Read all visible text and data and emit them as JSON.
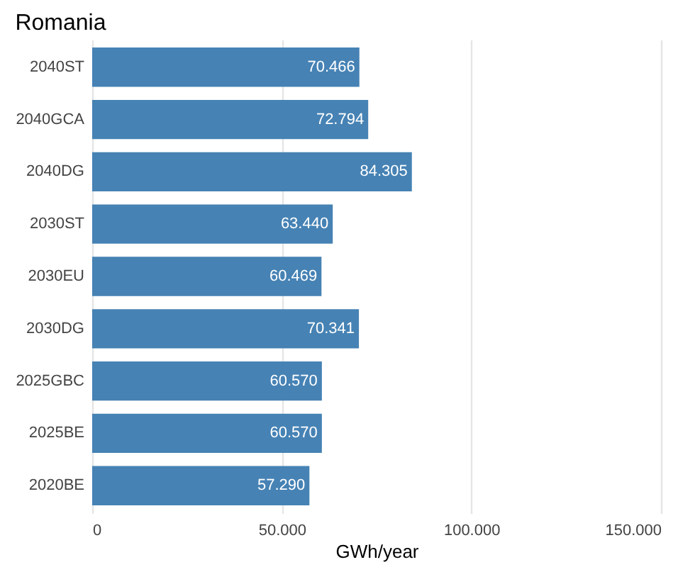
{
  "chart_data": {
    "type": "bar",
    "orientation": "horizontal",
    "title": "Romania",
    "xlabel": "GWh/year",
    "categories": [
      "2040ST",
      "2040GCA",
      "2040DG",
      "2030ST",
      "2030EU",
      "2030DG",
      "2025GBC",
      "2025BE",
      "2020BE"
    ],
    "values": [
      70466,
      72794,
      84305,
      63440,
      60469,
      70341,
      60570,
      60570,
      57290
    ],
    "value_labels": [
      "70.466",
      "72.794",
      "84.305",
      "63.440",
      "60.469",
      "70.341",
      "60.570",
      "60.570",
      "57.290"
    ],
    "color": "#4682b4",
    "xlim": [
      0,
      150000
    ],
    "xticks": [
      {
        "value": 0,
        "label": "0"
      },
      {
        "value": 50000,
        "label": "50.000"
      },
      {
        "value": 100000,
        "label": "100.000"
      },
      {
        "value": 150000,
        "label": "150.000"
      }
    ],
    "grid": "x"
  }
}
